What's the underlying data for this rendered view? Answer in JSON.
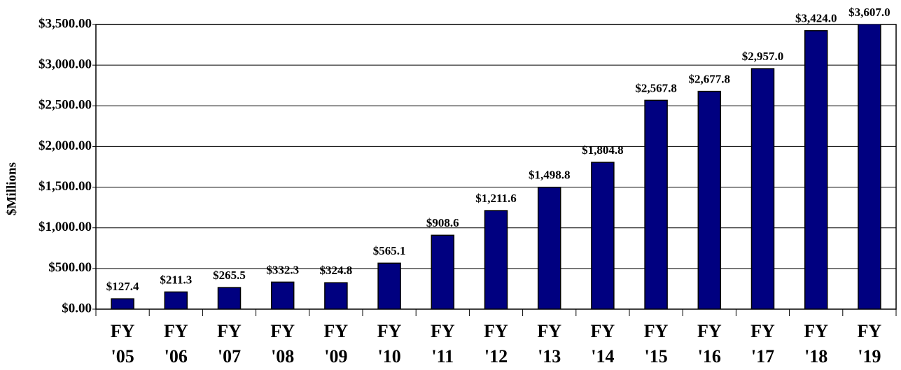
{
  "chart_data": {
    "type": "bar",
    "y_label": "$Millions",
    "categories": [
      "FY '05",
      "FY '06",
      "FY '07",
      "FY '08",
      "FY '09",
      "FY '10",
      "FY '11",
      "FY '12",
      "FY '13",
      "FY '14",
      "FY '15",
      "FY '16",
      "FY '17",
      "FY '18",
      "FY '19"
    ],
    "values": [
      127.4,
      211.3,
      265.5,
      332.3,
      324.8,
      565.1,
      908.6,
      1211.6,
      1498.8,
      1804.8,
      2567.8,
      2677.8,
      2957.0,
      3424.0,
      3607.0
    ],
    "value_labels": [
      "$127.4",
      "$211.3",
      "$265.5",
      "$332.3",
      "$324.8",
      "$565.1",
      "$908.6",
      "$1,211.6",
      "$1,498.8",
      "$1,804.8",
      "$2,567.8",
      "$2,677.8",
      "$2,957.0",
      "$3,424.0",
      "$3,607.0"
    ],
    "color": "#000080",
    "ylim": [
      0,
      3500
    ],
    "yticks": [
      {
        "value": 0,
        "label": "$0.00"
      },
      {
        "value": 500,
        "label": "$500.00"
      },
      {
        "value": 1000,
        "label": "$1,000.00"
      },
      {
        "value": 1500,
        "label": "$1,500.00"
      },
      {
        "value": 2000,
        "label": "$2,000.00"
      },
      {
        "value": 2500,
        "label": "$2,500.00"
      },
      {
        "value": 3000,
        "label": "$3,000.00"
      },
      {
        "value": 3500,
        "label": "$3,500.00"
      }
    ],
    "grid": true
  }
}
